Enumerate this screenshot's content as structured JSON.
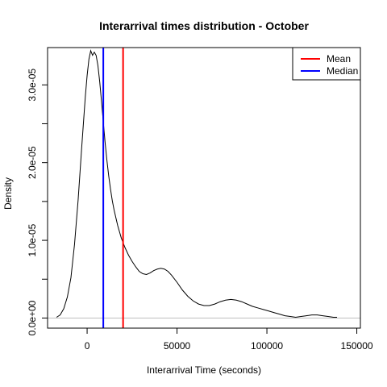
{
  "chart_data": {
    "type": "line",
    "title": "Interarrival times distribution - October",
    "xlabel": "Interarrival Time (seconds)",
    "ylabel": "Density",
    "xlim": [
      -22000,
      152000
    ],
    "ylim": [
      -1.3e-06,
      3.48e-05
    ],
    "x_ticks": [
      0,
      50000,
      100000,
      150000
    ],
    "x_tick_labels": [
      "0",
      "50000",
      "100000",
      "150000"
    ],
    "y_ticks": [
      0,
      5e-06,
      1e-05,
      1.5e-05,
      2e-05,
      2.5e-05,
      3e-05
    ],
    "y_tick_labels": [
      "0.0e+00",
      "",
      "1.0e-05",
      "",
      "2.0e-05",
      "",
      "3.0e-05"
    ],
    "baseline_color": "#bebebe",
    "series": [
      {
        "color": "#000000",
        "x": [
          -17000,
          -15000,
          -13000,
          -11000,
          -9000,
          -7000,
          -5000,
          -3000,
          -1000,
          0,
          1000,
          2000,
          3000,
          4000,
          5000,
          6000,
          7000,
          8000,
          9000,
          10000,
          11000,
          12000,
          13000,
          14000,
          15000,
          17000,
          19000,
          21000,
          23000,
          25000,
          27000,
          29000,
          31000,
          33000,
          35000,
          37000,
          39000,
          41000,
          43000,
          45000,
          47000,
          50000,
          53000,
          56000,
          59000,
          62000,
          65000,
          68000,
          71000,
          74000,
          77000,
          80000,
          83000,
          86000,
          89000,
          92000,
          95000,
          98000,
          101000,
          104000,
          107000,
          110000,
          113000,
          116000,
          119000,
          122000,
          125000,
          128000,
          131000,
          134000,
          137000,
          139000
        ],
        "y": [
          1e-07,
          4e-07,
          1.2e-06,
          2.7e-06,
          5.2e-06,
          9.5e-06,
          1.52e-05,
          2.2e-05,
          2.85e-05,
          3.12e-05,
          3.33e-05,
          3.44e-05,
          3.38e-05,
          3.42e-05,
          3.38e-05,
          3.25e-05,
          3.04e-05,
          2.79e-05,
          2.52e-05,
          2.26e-05,
          2.03e-05,
          1.83e-05,
          1.66e-05,
          1.51e-05,
          1.39e-05,
          1.19e-05,
          1.03e-05,
          9.1e-06,
          8.1e-06,
          7.3e-06,
          6.6e-06,
          6e-06,
          5.7e-06,
          5.6e-06,
          5.8e-06,
          6.1e-06,
          6.3e-06,
          6.4e-06,
          6.3e-06,
          6e-06,
          5.5e-06,
          4.6e-06,
          3.6e-06,
          2.8e-06,
          2.2e-06,
          1.8e-06,
          1.6e-06,
          1.6e-06,
          1.8e-06,
          2.1e-06,
          2.3e-06,
          2.4e-06,
          2.3e-06,
          2.1e-06,
          1.8e-06,
          1.5e-06,
          1.3e-06,
          1.1e-06,
          9e-07,
          7e-07,
          5e-07,
          3e-07,
          2e-07,
          1e-07,
          2e-07,
          3e-07,
          4e-07,
          4e-07,
          3e-07,
          2e-07,
          1e-07,
          1e-07
        ]
      }
    ],
    "vlines": [
      {
        "name": "Mean",
        "x": 20000,
        "color": "#ff0000"
      },
      {
        "name": "Median",
        "x": 9000,
        "color": "#0000ff"
      }
    ],
    "legend_position": "top-right",
    "grid": false
  }
}
